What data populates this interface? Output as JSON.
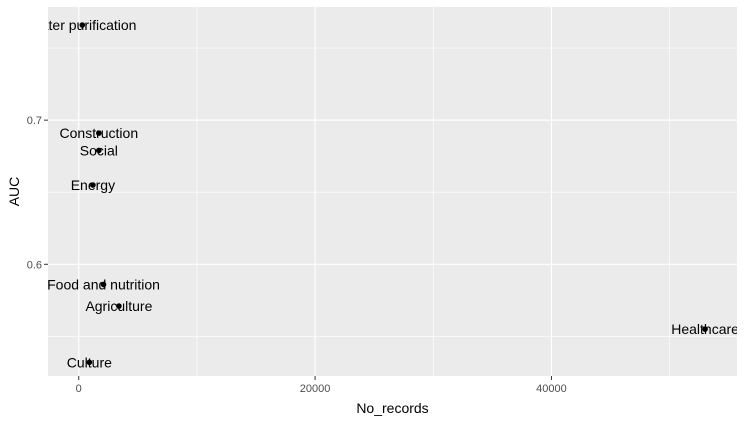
{
  "chart_data": {
    "type": "scatter",
    "xlabel": "No_records",
    "ylabel": "AUC",
    "xlim": [
      -2600,
      55700
    ],
    "ylim": [
      0.5225,
      0.7785
    ],
    "x_ticks": [
      0,
      20000,
      40000
    ],
    "y_ticks": [
      0.6,
      0.7
    ],
    "grid": true,
    "points": [
      {
        "label": "Water purification",
        "x": 300,
        "y": 0.766
      },
      {
        "label": "Construction",
        "x": 1700,
        "y": 0.691
      },
      {
        "label": "Social",
        "x": 1700,
        "y": 0.679
      },
      {
        "label": "Energy",
        "x": 1200,
        "y": 0.655
      },
      {
        "label": "Food and nutrition",
        "x": 2100,
        "y": 0.586
      },
      {
        "label": "Agriculture",
        "x": 3400,
        "y": 0.571
      },
      {
        "label": "Healthcare",
        "x": 53000,
        "y": 0.555
      },
      {
        "label": "Culture",
        "x": 900,
        "y": 0.532
      }
    ]
  }
}
